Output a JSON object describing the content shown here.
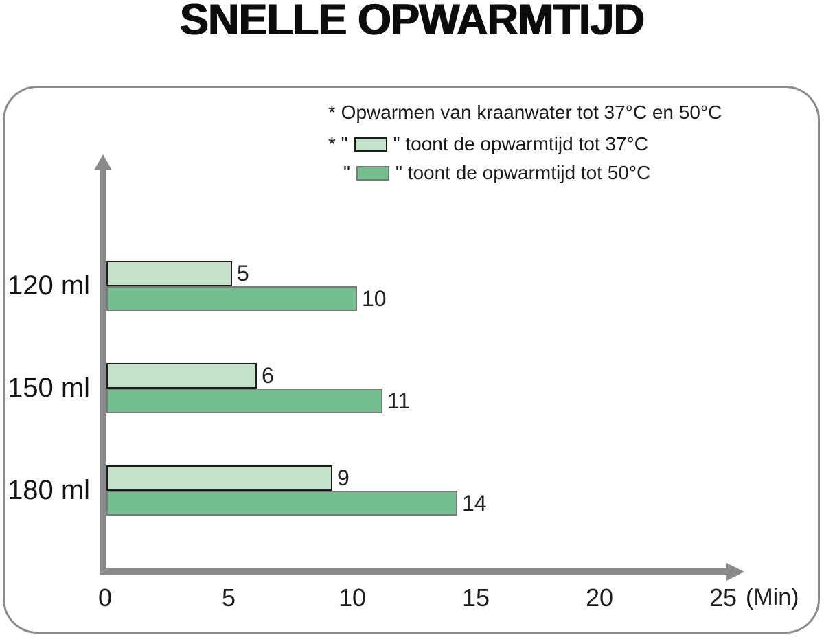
{
  "title": "SNELLE OPWARMTIJD",
  "legend": {
    "note": "* Opwarmen van kraanwater tot 37°C en 50°C",
    "items": [
      {
        "prefix": "* \" ",
        "suffix": " \" toont de opwarmtijd tot 37°C",
        "swatch_color": "#c5e3ca",
        "swatch_border": "#1c1c1c"
      },
      {
        "prefix": "\" ",
        "suffix": " \" toont de opwarmtijd tot 50°C",
        "swatch_color": "#73bf8e",
        "swatch_border": "#6f7f74"
      }
    ]
  },
  "chart_data": {
    "type": "bar",
    "orientation": "horizontal",
    "title": "SNELLE OPWARMTIJD",
    "categories": [
      "120 ml",
      "150 ml",
      "180 ml"
    ],
    "series": [
      {
        "name": "toont de opwarmtijd tot 37°C",
        "color": "#c5e3ca",
        "border_color": "#1c1c1c",
        "values": [
          5,
          6,
          9
        ]
      },
      {
        "name": "toont de opwarmtijd tot 50°C",
        "color": "#73bf8e",
        "border_color": "#7b7b7b",
        "values": [
          10,
          11,
          14
        ]
      }
    ],
    "xlabel": "(Min)",
    "x_ticks": [
      0,
      5,
      10,
      15,
      20,
      25
    ],
    "xlim": [
      0,
      25
    ],
    "ylabel": "",
    "grid": false,
    "legend_position": "top-right",
    "value_labels": true
  },
  "colors": {
    "axis": "#8a8a8a",
    "panel_border": "#8c8c8c",
    "text": "#1b1b1b"
  }
}
